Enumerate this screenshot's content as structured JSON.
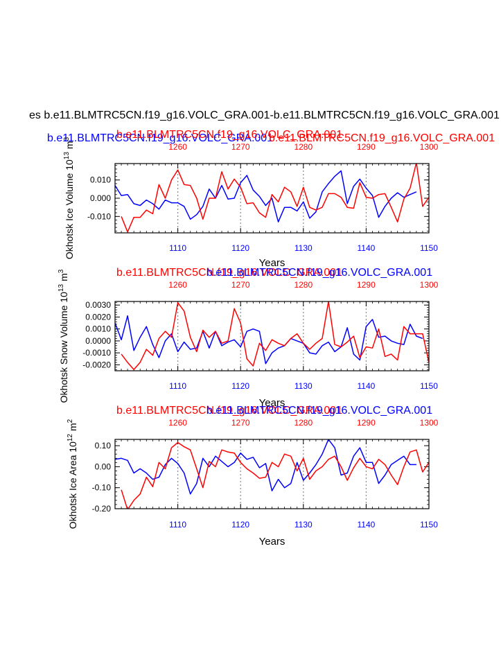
{
  "main_title": "es b.e11.BLMTRC5CN.f19_g16.VOLC_GRA.001-b.e11.BLMTRC5CN.f19_g16.VOLC_GRA.001",
  "subtitles": {
    "blue_a": "b.e11.BLMTRC5CN.f19_g16.VOLC_GRA.001",
    "red_a": "b.e11.BLMTRC5CN.f19_g16.VOLC_GRA.001",
    "red_b": "b.e11.BLMTRC5CN.f19_g16.VOLC_GRA.001"
  },
  "colors": {
    "run_blue": "#0000ff",
    "run_red": "#ff0000",
    "axis": "#000000",
    "grid": "#888888"
  },
  "chart_data": [
    {
      "type": "line",
      "title_red": "b.e11.BLMTRC5CN.f19_g16.VOLC_GRA.001",
      "title_blue": "b.e11.BLMTRC5CN.f19_g16.VOLC_GRA.001",
      "ylabel": "Okhotsk Ice Volume 10^13 m^3",
      "ylabel_main": "Okhotsk Ice Volume 10",
      "ylabel_exp1": "13",
      "ylabel_unit": "m",
      "ylabel_exp2": "3",
      "xlabel": "Years",
      "xlim_bottom": [
        1100,
        1150
      ],
      "xlim_top": [
        1250,
        1300
      ],
      "xticks_bottom": [
        "1110",
        "1120",
        "1130",
        "1140",
        "1150"
      ],
      "xticks_top": [
        "1260",
        "1270",
        "1280",
        "1290",
        "1300"
      ],
      "ylim": [
        -0.019,
        0.019
      ],
      "yticks": [
        "0.010",
        "0.000",
        "-0.010"
      ],
      "ytick_values": [
        0.01,
        0.0,
        -0.01
      ],
      "grid_x": [
        1110,
        1120,
        1130,
        1140
      ],
      "series": [
        {
          "name": "blue",
          "color": "#0000ff",
          "x_start": 1100,
          "values": [
            0.007,
            0.0015,
            0.002,
            -0.003,
            -0.004,
            -0.001,
            -0.003,
            -0.006,
            -0.001,
            -0.0025,
            -0.0025,
            -0.0045,
            -0.0115,
            -0.009,
            -0.0045,
            0.005,
            0.0,
            0.007,
            -0.0005,
            0.0,
            0.0085,
            0.0125,
            0.0045,
            0.001,
            -0.004,
            0.0,
            -0.013,
            -0.005,
            -0.005,
            -0.007,
            -0.002,
            -0.011,
            -0.0075,
            0.0035,
            0.008,
            0.012,
            0.015,
            -0.003,
            0.0065,
            0.0105,
            0.0055,
            0.0015,
            -0.0105,
            -0.0045,
            0.0,
            0.003,
            0.0005,
            0.002,
            0.0035
          ]
        },
        {
          "name": "red",
          "color": "#ff0000",
          "x_start": 1101,
          "values": [
            -0.01,
            -0.0185,
            -0.0105,
            -0.0105,
            -0.0065,
            -0.0085,
            0.0075,
            0.0,
            0.01,
            0.0155,
            0.0075,
            0.007,
            0.0,
            -0.0115,
            0.0,
            0.0,
            0.0145,
            0.005,
            0.0105,
            0.006,
            -0.003,
            -0.0025,
            -0.008,
            -0.0105,
            0.002,
            -0.002,
            0.006,
            0.0035,
            -0.0045,
            0.006,
            -0.005,
            -0.0065,
            -0.005,
            0.0025,
            0.0025,
            0.0005,
            -0.005,
            -0.0055,
            0.0085,
            0.0005,
            0.0,
            0.002,
            0.0025,
            -0.005,
            -0.013,
            -0.0005,
            0.0055,
            0.0195,
            -0.0045,
            0.0005
          ]
        }
      ]
    },
    {
      "type": "line",
      "title_red": "b.e11.BLMTRC5CN.f19_g16.VOLC_GRA.001",
      "title_blue": "b.e11.BLMTRC5CN.f19_g16.VOLC_GRA.001",
      "ylabel": "Okhotsk Snow Volume 10^13 m^3",
      "ylabel_main": "Okhotsk Snow Volume 10",
      "ylabel_exp1": "13",
      "ylabel_unit": "m",
      "ylabel_exp2": "3",
      "xlabel": "Years",
      "xlim_bottom": [
        1100,
        1150
      ],
      "xlim_top": [
        1250,
        1300
      ],
      "xticks_bottom": [
        "1110",
        "1120",
        "1130",
        "1140",
        "1150"
      ],
      "xticks_top": [
        "1260",
        "1270",
        "1280",
        "1290",
        "1300"
      ],
      "ylim": [
        -0.0025,
        0.0033
      ],
      "yticks": [
        "0.0030",
        "0.0020",
        "0.0010",
        "0.0000",
        "-0.0010",
        "-0.0020"
      ],
      "ytick_values": [
        0.003,
        0.002,
        0.001,
        0.0,
        -0.001,
        -0.002
      ],
      "grid_x": [
        1110,
        1120,
        1130,
        1140
      ],
      "series": [
        {
          "name": "blue",
          "color": "#0000ff",
          "x_start": 1100,
          "values": [
            0.0015,
            0.0001,
            0.0021,
            -0.0008,
            0.0003,
            0.0012,
            -0.0003,
            -0.0014,
            0.0,
            0.0006,
            -0.0009,
            -0.0001,
            -0.0007,
            -0.0006,
            0.0008,
            -0.0006,
            0.0008,
            -0.0004,
            -0.0001,
            0.0001,
            -0.0005,
            0.0008,
            0.001,
            0.0008,
            -0.0019,
            -0.001,
            -0.0006,
            -0.0004,
            0.0002,
            0.0,
            -0.0002,
            -0.001,
            -0.0011,
            -0.0004,
            -0.0001,
            -0.0009,
            -0.0005,
            0.0011,
            -0.0011,
            -0.0016,
            0.0012,
            0.0018,
            0.0003,
            0.0004,
            0.0,
            -0.0002,
            -0.0003,
            0.0014,
            0.0004,
            0.0002
          ]
        },
        {
          "name": "red",
          "color": "#ff0000",
          "x_start": 1101,
          "values": [
            -0.0011,
            -0.0018,
            -0.0024,
            -0.0018,
            -0.0007,
            -0.0012,
            0.0002,
            0.0008,
            0.0003,
            0.0032,
            0.0025,
            0.0003,
            -0.0009,
            0.0009,
            0.0003,
            0.0008,
            -0.0002,
            0.0,
            0.0027,
            0.0015,
            -0.0015,
            -0.0021,
            -0.0002,
            -0.0008,
            0.0001,
            -0.0002,
            -0.0004,
            0.0002,
            0.0006,
            -0.0002,
            -0.0007,
            -0.0002,
            0.0002,
            0.0033,
            -0.0003,
            -0.0005,
            -0.0001,
            0.0004,
            -0.0014,
            -0.0005,
            -0.0006,
            0.001,
            -0.0013,
            -0.0011,
            -0.0016,
            0.0012,
            0.0006,
            0.0006,
            0.0006,
            -0.0018
          ]
        }
      ]
    },
    {
      "type": "line",
      "title_red": "b.e11.BLMTRC5CN.f19_g16.VOLC_GRA.001",
      "title_blue": "b.e11.BLMTRC5CN.f19_g16.VOLC_GRA.001",
      "ylabel": "Okhotsk Ice Area 10^12 m^2",
      "ylabel_main": "Okhotsk Ice Area 10",
      "ylabel_exp1": "12",
      "ylabel_unit": "m",
      "ylabel_exp2": "2",
      "xlabel": "Years",
      "xlim_bottom": [
        1100,
        1150
      ],
      "xlim_top": [
        1250,
        1300
      ],
      "xticks_bottom": [
        "1110",
        "1120",
        "1130",
        "1140",
        "1150"
      ],
      "xticks_top": [
        "1260",
        "1270",
        "1280",
        "1290",
        "1300"
      ],
      "ylim": [
        -0.2,
        0.13
      ],
      "yticks": [
        "0.10",
        "0.00",
        "-0.10",
        "-0.20"
      ],
      "ytick_values": [
        0.1,
        0.0,
        -0.1,
        -0.2
      ],
      "grid_x": [
        1110,
        1120,
        1130,
        1140
      ],
      "series": [
        {
          "name": "blue",
          "color": "#0000ff",
          "x_start": 1100,
          "values": [
            0.035,
            0.04,
            0.03,
            -0.03,
            -0.01,
            -0.03,
            -0.06,
            -0.05,
            0.01,
            0.04,
            0.015,
            -0.03,
            -0.13,
            -0.08,
            0.04,
            0.0,
            0.05,
            0.025,
            0.0,
            0.02,
            0.065,
            0.035,
            0.045,
            -0.005,
            0.015,
            -0.115,
            -0.06,
            -0.1,
            -0.08,
            0.02,
            -0.065,
            -0.03,
            0.01,
            0.06,
            0.13,
            0.09,
            -0.04,
            -0.03,
            0.05,
            0.09,
            0.02,
            0.02,
            -0.08,
            -0.04,
            0.01,
            0.03,
            0.05,
            0.01,
            0.01
          ]
        },
        {
          "name": "red",
          "color": "#ff0000",
          "x_start": 1101,
          "values": [
            -0.11,
            -0.205,
            -0.16,
            -0.13,
            -0.05,
            -0.095,
            0.02,
            -0.01,
            0.09,
            0.115,
            0.095,
            0.08,
            -0.01,
            -0.1,
            0.025,
            0.0,
            0.08,
            0.07,
            0.065,
            0.02,
            -0.01,
            -0.03,
            -0.055,
            -0.05,
            0.02,
            0.0,
            0.06,
            0.05,
            -0.02,
            0.04,
            -0.06,
            -0.02,
            0.0,
            0.035,
            0.05,
            0.0,
            -0.065,
            -0.005,
            0.04,
            0.0,
            -0.01,
            0.035,
            0.01,
            -0.04,
            -0.085,
            0.0,
            0.07,
            0.08,
            -0.025,
            0.02
          ]
        }
      ]
    }
  ]
}
